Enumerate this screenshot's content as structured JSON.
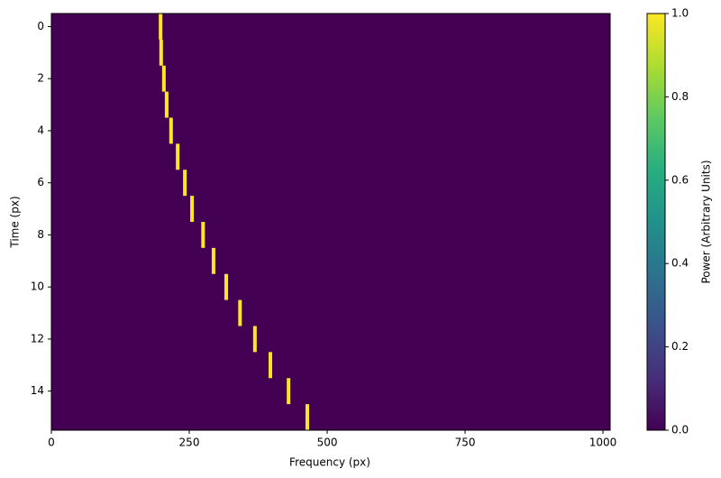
{
  "chart_data": {
    "type": "heatmap",
    "xlabel": "Frequency (px)",
    "ylabel": "Time (px)",
    "colorbar_label": "Power (Arbitrary Units)",
    "colormap": "viridis",
    "rows": [
      0,
      1,
      2,
      3,
      4,
      5,
      6,
      7,
      8,
      9,
      10,
      11,
      12,
      13,
      14,
      15
    ],
    "peak_frequency": [
      198,
      199,
      204,
      209,
      217,
      229,
      242,
      255,
      275,
      294,
      317,
      342,
      369,
      397,
      430,
      464
    ],
    "values": [
      1,
      1,
      1,
      1,
      1,
      1,
      1,
      1,
      1,
      1,
      1,
      1,
      1,
      1,
      1,
      1
    ],
    "background_value": 0,
    "xlim": [
      0,
      1013
    ],
    "ylim": [
      -0.5,
      15.5
    ],
    "xticks": [
      0,
      250,
      500,
      750,
      1000
    ],
    "yticks": [
      0,
      2,
      4,
      6,
      8,
      10,
      12,
      14
    ],
    "clim": [
      0,
      1
    ],
    "cticks": [
      {
        "value": 0,
        "label": "0.0"
      },
      0.2,
      0.4,
      0.6,
      0.8,
      {
        "value": 1,
        "label": "1.0"
      }
    ]
  }
}
